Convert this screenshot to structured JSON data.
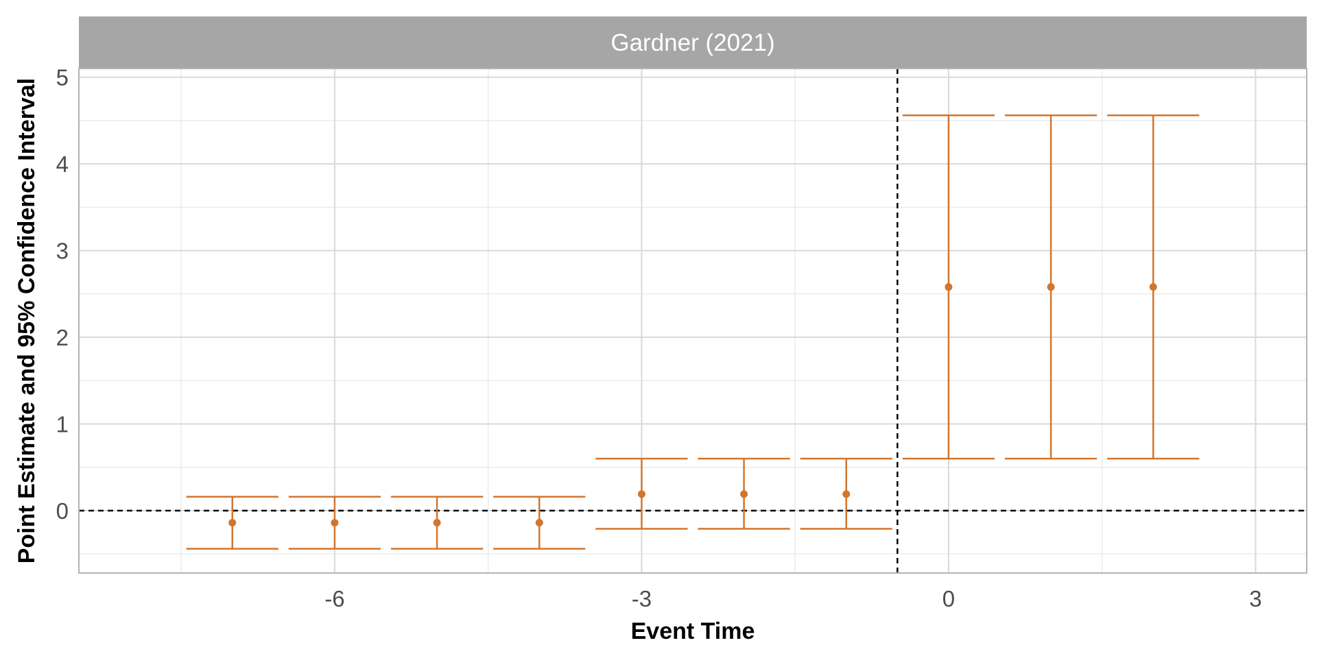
{
  "chart_data": {
    "type": "errorbar",
    "facet_title": "Gardner (2021)",
    "xlabel": "Event Time",
    "ylabel": "Point Estimate and 95% Confidence Interval",
    "xlim": [
      -8.5,
      3.5
    ],
    "ylim": [
      -0.72,
      5.1
    ],
    "x_ticks": [
      -6,
      -3,
      0,
      3
    ],
    "y_ticks": [
      0,
      1,
      2,
      3,
      4,
      5
    ],
    "grid": true,
    "reference_lines": {
      "vertical_x": -0.5,
      "horizontal_y": 0
    },
    "color": "#D2752D",
    "points": [
      {
        "x": -7,
        "estimate": -0.14,
        "ci_low": -0.44,
        "ci_high": 0.16
      },
      {
        "x": -6,
        "estimate": -0.14,
        "ci_low": -0.44,
        "ci_high": 0.16
      },
      {
        "x": -5,
        "estimate": -0.14,
        "ci_low": -0.44,
        "ci_high": 0.16
      },
      {
        "x": -4,
        "estimate": -0.14,
        "ci_low": -0.44,
        "ci_high": 0.16
      },
      {
        "x": -3,
        "estimate": 0.19,
        "ci_low": -0.21,
        "ci_high": 0.6
      },
      {
        "x": -2,
        "estimate": 0.19,
        "ci_low": -0.21,
        "ci_high": 0.6
      },
      {
        "x": -1,
        "estimate": 0.19,
        "ci_low": -0.21,
        "ci_high": 0.6
      },
      {
        "x": 0,
        "estimate": 2.58,
        "ci_low": 0.6,
        "ci_high": 4.56
      },
      {
        "x": 1,
        "estimate": 2.58,
        "ci_low": 0.6,
        "ci_high": 4.56
      },
      {
        "x": 2,
        "estimate": 2.58,
        "ci_low": 0.6,
        "ci_high": 4.56
      }
    ]
  }
}
